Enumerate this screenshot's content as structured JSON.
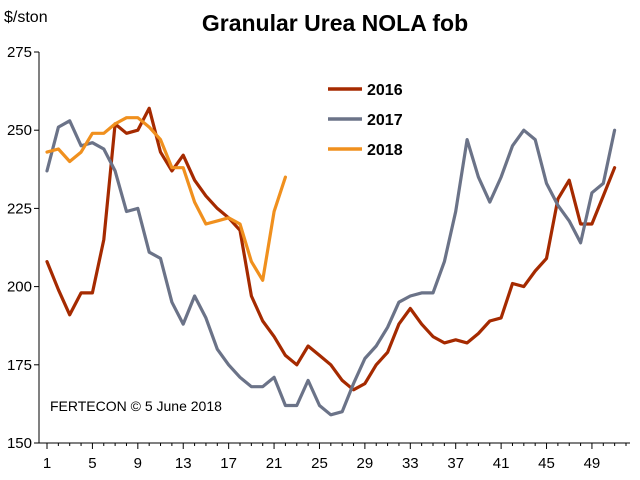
{
  "chart_data": {
    "type": "line",
    "title": "Granular Urea NOLA fob",
    "ylabel": "$/ston",
    "xlabel": "",
    "ylim": [
      150,
      275
    ],
    "xlim": [
      1,
      52
    ],
    "yticks": [
      150,
      175,
      200,
      225,
      250,
      275
    ],
    "xticks": [
      1,
      5,
      9,
      13,
      17,
      21,
      25,
      29,
      33,
      37,
      41,
      45,
      49
    ],
    "grid": false,
    "legend_position": "top-center",
    "annotation": "FERTECON © 5 June 2018",
    "series": [
      {
        "name": "2016",
        "color": "#a52a00",
        "x": [
          1,
          2,
          3,
          4,
          5,
          6,
          7,
          8,
          9,
          10,
          11,
          12,
          13,
          14,
          15,
          16,
          17,
          18,
          19,
          20,
          21,
          22,
          23,
          24,
          25,
          26,
          27,
          28,
          29,
          30,
          31,
          32,
          33,
          34,
          35,
          36,
          37,
          38,
          39,
          40,
          41,
          42,
          43,
          44,
          45,
          46,
          47,
          48,
          49,
          50,
          51,
          52
        ],
        "values": [
          208,
          199,
          191,
          198,
          198,
          215,
          252,
          249,
          250,
          257,
          243,
          237,
          242,
          234,
          229,
          225,
          222,
          218,
          197,
          189,
          184,
          178,
          175,
          181,
          178,
          175,
          170,
          167,
          169,
          175,
          179,
          188,
          193,
          188,
          184,
          182,
          183,
          182,
          185,
          189,
          190,
          201,
          200,
          205,
          209,
          228,
          234,
          220,
          220,
          229,
          238,
          null
        ]
      },
      {
        "name": "2017",
        "color": "#6b7388",
        "x": [
          1,
          2,
          3,
          4,
          5,
          6,
          7,
          8,
          9,
          10,
          11,
          12,
          13,
          14,
          15,
          16,
          17,
          18,
          19,
          20,
          21,
          22,
          23,
          24,
          25,
          26,
          27,
          28,
          29,
          30,
          31,
          32,
          33,
          34,
          35,
          36,
          37,
          38,
          39,
          40,
          41,
          42,
          43,
          44,
          45,
          46,
          47,
          48,
          49,
          50,
          51,
          52
        ],
        "values": [
          237,
          251,
          253,
          245,
          246,
          244,
          237,
          224,
          225,
          211,
          209,
          195,
          188,
          197,
          190,
          180,
          175,
          171,
          168,
          168,
          171,
          162,
          162,
          170,
          162,
          159,
          160,
          169,
          177,
          181,
          187,
          195,
          197,
          198,
          198,
          208,
          224,
          247,
          235,
          227,
          235,
          245,
          250,
          247,
          233,
          226,
          221,
          214,
          230,
          233,
          250,
          null
        ]
      },
      {
        "name": "2018",
        "color": "#f0901e",
        "x": [
          1,
          2,
          3,
          4,
          5,
          6,
          7,
          8,
          9,
          10,
          11,
          12,
          13,
          14,
          15,
          16,
          17,
          18,
          19,
          20,
          21,
          22
        ],
        "values": [
          243,
          244,
          240,
          243,
          249,
          249,
          252,
          254,
          254,
          251,
          247,
          238,
          238,
          227,
          220,
          221,
          222,
          220,
          208,
          202,
          224,
          235
        ]
      }
    ]
  }
}
